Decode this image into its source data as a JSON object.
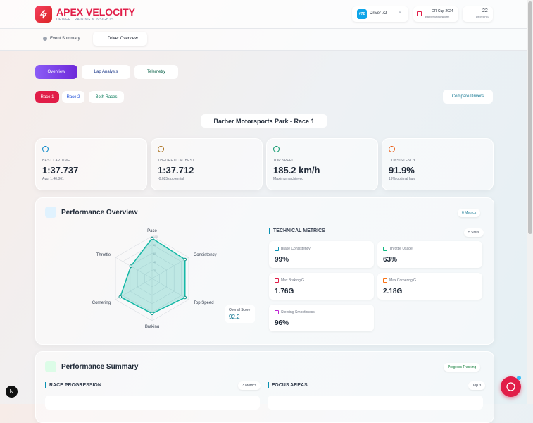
{
  "header": {
    "brand": "APEX VELOCITY",
    "tagline": "DRIVER TRAINING & INSIGHTS",
    "driver_badge": "#72",
    "driver": "Driver 72",
    "close": "×",
    "event": "GR Cup 2024",
    "venue": "Barber Motorsports",
    "driver_count": "22",
    "driver_count_label": "DRIVERS"
  },
  "tabs": [
    "Event Summary",
    "Driver Overview"
  ],
  "nav": [
    "Overview",
    "Lap Analysis",
    "Telemetry"
  ],
  "races": [
    "Race 1",
    "Race 2",
    "Both Races"
  ],
  "compare": "Compare Drivers",
  "location": "Barber Motorsports Park - Race 1",
  "stats": [
    {
      "label": "BEST LAP TIME",
      "value": "1:37.737",
      "sub": "Avg: 1:40.861"
    },
    {
      "label": "THEORETICAL BEST",
      "value": "1:37.712",
      "sub": "-0.025s potential"
    },
    {
      "label": "TOP SPEED",
      "value": "185.2 km/h",
      "sub": "Maximum achieved"
    },
    {
      "label": "CONSISTENCY",
      "value": "91.9%",
      "sub": "19% optimal laps"
    }
  ],
  "performance_overview": {
    "title": "Performance Overview",
    "badge": "6 Metrics",
    "overall_label": "Overall Score",
    "overall": 92.2,
    "radar": {
      "axes": [
        "Pace",
        "Consistency",
        "Top Speed",
        "Braking",
        "Cornering",
        "Throttle"
      ],
      "values": [
        95,
        90,
        90,
        83,
        87,
        58
      ],
      "rlim": [
        0,
        100
      ],
      "rticks": [
        20,
        40,
        60,
        80,
        100
      ]
    },
    "technical_title": "TECHNICAL METRICS",
    "technical_badge": "5 Stats",
    "metrics": [
      {
        "label": "Brake Consistency",
        "value": "99%"
      },
      {
        "label": "Throttle Usage",
        "value": "63%"
      },
      {
        "label": "Max Braking G",
        "value": "1.76G"
      },
      {
        "label": "Max Cornering G",
        "value": "2.18G"
      },
      {
        "label": "Steering Smoothness",
        "value": "96%"
      }
    ]
  },
  "performance_summary": {
    "title": "Performance Summary",
    "badge": "Progress Tracking",
    "progression": "RACE PROGRESSION",
    "progression_badge": "3 Metrics",
    "focus": "FOCUS AREAS",
    "focus_badge": "Top 3"
  }
}
